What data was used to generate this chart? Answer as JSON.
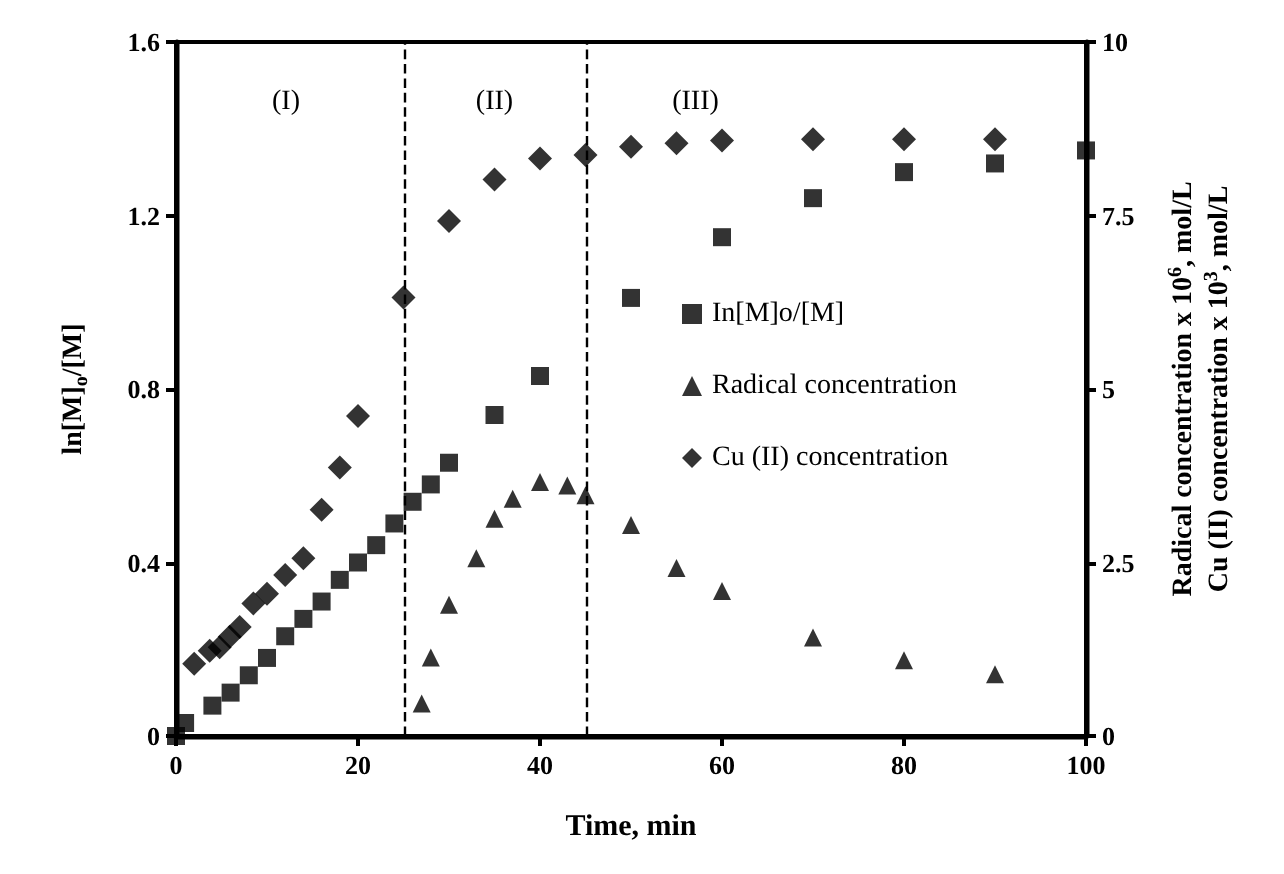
{
  "chart_data": {
    "type": "scatter",
    "xlabel": "Time, min",
    "ylabel": "ln[M]$_{o}$/[M]",
    "y2label": "Radical concentration x 10$^{6}$, mol/L\nCu (II) concentration x 10$^{3}$, mol/L",
    "xlim": [
      0,
      100
    ],
    "xticks": [
      0,
      20,
      40,
      60,
      80,
      100
    ],
    "ylim": [
      0,
      1.6
    ],
    "yticks": [
      0,
      0.4,
      0.8,
      1.2,
      1.6
    ],
    "y2lim": [
      0,
      10
    ],
    "y2ticks": [
      0,
      2.5,
      5,
      7.5,
      10
    ],
    "grid": false,
    "legend": "right",
    "series": [
      {
        "name": "In[M]o/[M]",
        "color": "#000000",
        "marker": "square",
        "x": [
          0,
          1,
          4,
          6,
          8,
          10,
          12,
          14,
          16,
          18,
          20,
          22,
          24,
          26,
          28,
          30,
          35,
          40,
          50,
          60,
          70,
          80,
          90,
          100
        ],
        "values": [
          0,
          0.03,
          0.07,
          0.1,
          0.14,
          0.18,
          0.23,
          0.27,
          0.31,
          0.36,
          0.4,
          0.44,
          0.49,
          0.54,
          0.58,
          0.63,
          0.74,
          0.83,
          1.01,
          1.15,
          1.24,
          1.3,
          1.32,
          1.35
        ]
      },
      {
        "name": "Radical concentration",
        "color": "#000000",
        "marker": "triangle",
        "axis": "y2",
        "x": [
          27,
          28,
          30,
          33,
          35,
          37,
          40,
          43,
          45,
          50,
          55,
          60,
          70,
          80,
          90
        ],
        "values": [
          0.47,
          1.13,
          1.89,
          2.56,
          3.13,
          3.42,
          3.66,
          3.61,
          3.47,
          3.04,
          2.42,
          2.09,
          1.42,
          1.09,
          0.89
        ]
      },
      {
        "name": "Cu (II) concentration",
        "color": "#000000",
        "marker": "diamond",
        "axis": "y2",
        "x": [
          2,
          3.7,
          4.8,
          5.9,
          7,
          8.5,
          10,
          12,
          14,
          16,
          18,
          20,
          25,
          30,
          35,
          40,
          45,
          50,
          55,
          60,
          70,
          80,
          90
        ],
        "values": [
          1.04,
          1.23,
          1.28,
          1.43,
          1.57,
          1.91,
          2.05,
          2.32,
          2.56,
          3.26,
          3.87,
          4.61,
          6.32,
          7.42,
          8.02,
          8.32,
          8.37,
          8.49,
          8.54,
          8.58,
          8.6,
          8.6,
          8.6
        ]
      }
    ],
    "ref_lines": [
      {
        "axis": "x",
        "value": 25,
        "line_style": "dashed",
        "color": "#000000"
      },
      {
        "axis": "x",
        "value": 45,
        "line_style": "dashed",
        "color": "#000000"
      }
    ],
    "annotations": [
      "(I)",
      "(II)",
      "(III)"
    ]
  }
}
